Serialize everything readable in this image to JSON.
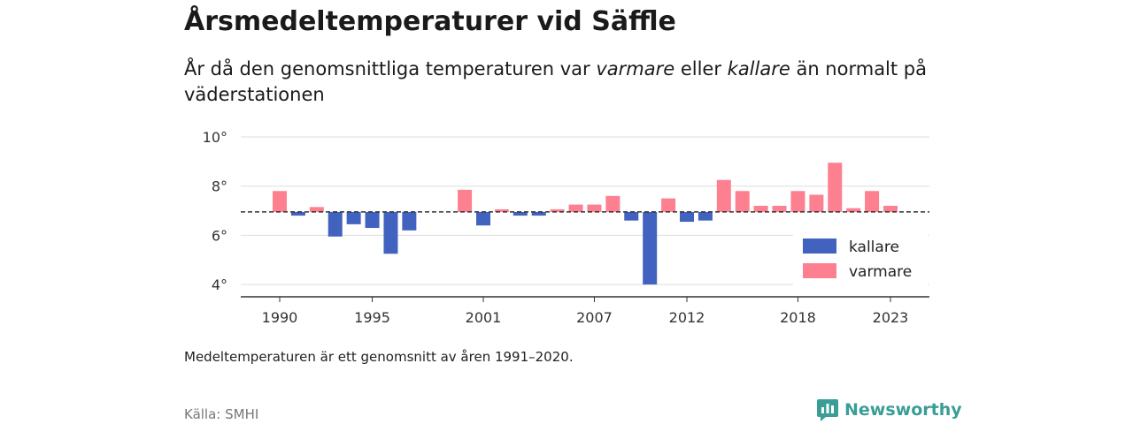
{
  "title": "Årsmedeltemperaturer vid Säffle",
  "subtitle": {
    "part1": "År då den genomsnittliga temperaturen var ",
    "warm": "varmare",
    "part2": " eller ",
    "cold": "kallare",
    "part3": " än normalt på väderstationen"
  },
  "note": "Medeltemperaturen är ett genomsnitt av åren 1991–2020.",
  "source": "Källa: SMHI",
  "brand": {
    "name": "Newsworthy",
    "icon": "newsworthy-logo-icon"
  },
  "colors": {
    "kallare": "#4262bf",
    "varmare": "#fd8090",
    "reference_line": "#333333",
    "grid": "#dddddd",
    "brand": "#3a9d96"
  },
  "chart_data": {
    "type": "bar",
    "baseline": 6.95,
    "x": [
      1990,
      1991,
      1992,
      1993,
      1994,
      1995,
      1996,
      1997,
      1998,
      1999,
      2000,
      2001,
      2002,
      2003,
      2004,
      2005,
      2006,
      2007,
      2008,
      2009,
      2010,
      2011,
      2012,
      2013,
      2014,
      2015,
      2016,
      2017,
      2018,
      2019,
      2020,
      2021,
      2022,
      2023
    ],
    "values": [
      7.8,
      6.8,
      7.15,
      5.95,
      6.45,
      6.3,
      5.25,
      6.2,
      null,
      null,
      7.85,
      6.4,
      7.0,
      6.8,
      6.8,
      7.05,
      7.25,
      7.25,
      7.6,
      6.6,
      4.0,
      7.5,
      6.55,
      6.6,
      8.25,
      7.8,
      7.2,
      7.2,
      7.8,
      7.65,
      8.95,
      7.1,
      7.8,
      7.2
    ],
    "ylim": [
      3.5,
      10
    ],
    "yticks": [
      4,
      6,
      8,
      10
    ],
    "ytick_labels": [
      "4°",
      "6°",
      "8°",
      "10°"
    ],
    "xticks": [
      1990,
      1995,
      2001,
      2007,
      2012,
      2018,
      2023
    ],
    "xtick_labels": [
      "1990",
      "1995",
      "2001",
      "2007",
      "2012",
      "2018",
      "2023"
    ],
    "series": [
      {
        "name": "kallare",
        "color": "#4262bf"
      },
      {
        "name": "varmare",
        "color": "#fd8090"
      }
    ],
    "grid": true,
    "legend_position": "bottom-right"
  }
}
